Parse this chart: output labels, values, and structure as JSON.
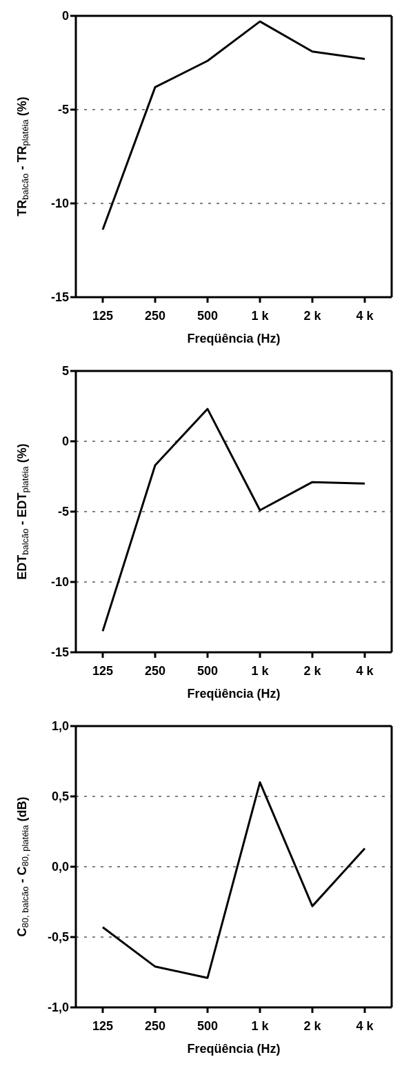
{
  "chart_data": [
    {
      "type": "line",
      "xlabel": "Freqüência (Hz)",
      "ylabel": "TR$_{balcão}$ - TR$_{platéia}$ (%)",
      "categories": [
        "125",
        "250",
        "500",
        "1 k",
        "2 k",
        "4 k"
      ],
      "series": [
        {
          "color": "#000000",
          "values": [
            -11.4,
            -3.8,
            -2.4,
            -0.3,
            -1.9,
            -2.3
          ]
        }
      ],
      "ylim": [
        -15,
        0
      ],
      "yticks": [
        -15,
        -10,
        -5,
        0
      ],
      "grid": "y",
      "line_style": "solid"
    },
    {
      "type": "line",
      "xlabel": "Freqüência (Hz)",
      "ylabel": "EDT$_{balcão}$ - EDT$_{platéia}$ (%)",
      "categories": [
        "125",
        "250",
        "500",
        "1 k",
        "2 k",
        "4 k"
      ],
      "series": [
        {
          "color": "#000000",
          "values": [
            -13.5,
            -1.7,
            2.3,
            -4.9,
            -2.9,
            -3.0
          ]
        }
      ],
      "ylim": [
        -15,
        5
      ],
      "yticks": [
        -15,
        -10,
        -5,
        0,
        5
      ],
      "grid": "y",
      "line_style": "solid"
    },
    {
      "type": "line",
      "xlabel": "Freqüência (Hz)",
      "ylabel": "C$_{80, balcão}$ - C$_{80, platéia}$ (dB)",
      "categories": [
        "125",
        "250",
        "500",
        "1 k",
        "2 k",
        "4 k"
      ],
      "series": [
        {
          "color": "#000000",
          "values": [
            -0.43,
            -0.71,
            -0.79,
            0.6,
            -0.28,
            0.13
          ]
        }
      ],
      "ylim": [
        -1,
        1
      ],
      "yticks": [
        {
          "value": -1,
          "label": "-1,0"
        },
        {
          "value": -0.5,
          "label": "-0,5"
        },
        {
          "value": 0,
          "label": "0,0"
        },
        {
          "value": 0.5,
          "label": "0,5"
        },
        {
          "value": 1,
          "label": "1,0"
        }
      ],
      "grid": "y",
      "line_style": "solid"
    }
  ]
}
